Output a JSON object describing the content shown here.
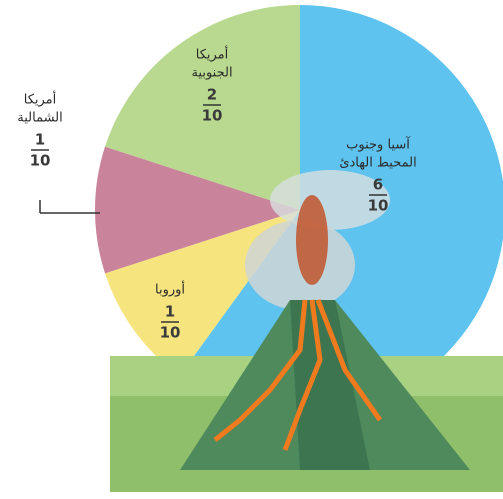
{
  "chart_data": {
    "type": "pie",
    "categories": [
      [
        "آسيا وجنوب",
        "المحيط الهادئ"
      ],
      [
        "أوروبا"
      ],
      [
        "أمريكا",
        "الشمالية"
      ],
      [
        "أمريكا",
        "الجنوبية"
      ]
    ],
    "values": [
      6,
      1,
      1,
      2
    ],
    "denominators": [
      10,
      10,
      10,
      10
    ],
    "colors": [
      "#5ec3ef",
      "#f6e47e",
      "#c9839a",
      "#b8d98f"
    ]
  }
}
